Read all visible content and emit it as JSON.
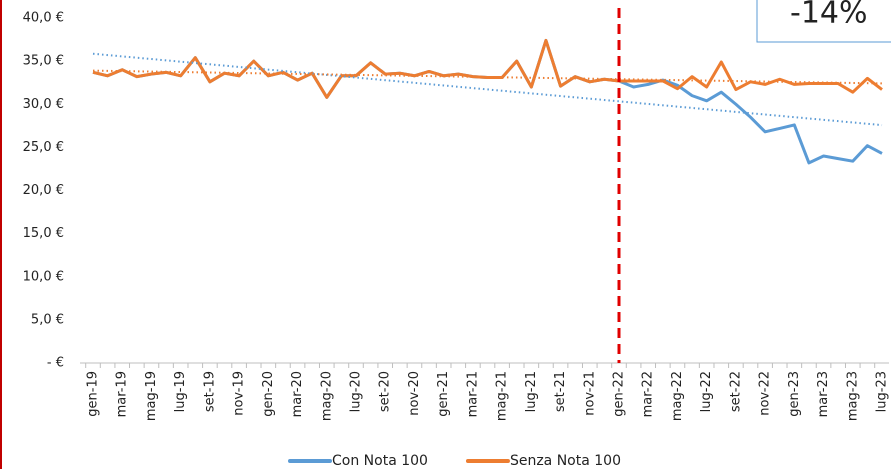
{
  "chart_data": {
    "type": "line",
    "categories": [
      "gen-19",
      null,
      "mar-19",
      null,
      "mag-19",
      null,
      "lug-19",
      null,
      "set-19",
      null,
      "nov-19",
      null,
      "gen-20",
      null,
      "mar-20",
      null,
      "mag-20",
      null,
      "lug-20",
      null,
      "set-20",
      null,
      "nov-20",
      null,
      "gen-21",
      null,
      "mar-21",
      null,
      "mag-21",
      null,
      "lug-21",
      null,
      "set-21",
      null,
      "nov-21",
      null,
      "gen-22",
      null,
      "mar-22",
      null,
      "mag-22",
      null,
      "lug-22",
      null,
      "set-22",
      null,
      "nov-22",
      null,
      "gen-23",
      null,
      "mar-23",
      null,
      "mag-23",
      null,
      "lug-23"
    ],
    "series": [
      {
        "name": "Con Nota 100",
        "color": "#5b9bd5",
        "trendline": true,
        "values": [
          33.7,
          33.3,
          34.0,
          33.2,
          33.5,
          33.7,
          33.3,
          35.4,
          32.6,
          33.6,
          33.3,
          35.0,
          33.3,
          33.7,
          32.8,
          33.6,
          30.8,
          33.3,
          33.3,
          34.8,
          33.5,
          33.6,
          33.3,
          33.8,
          33.3,
          33.5,
          33.2,
          33.1,
          33.1,
          35.0,
          32.0,
          37.4,
          32.1,
          33.2,
          32.6,
          32.9,
          32.7,
          32.0,
          32.3,
          32.8,
          32.2,
          31.0,
          30.4,
          31.4,
          30.0,
          28.5,
          26.8,
          27.2,
          27.6,
          23.2,
          24.0,
          23.7,
          23.4,
          25.2,
          24.3
        ]
      },
      {
        "name": "Senza Nota 100",
        "color": "#ed7d31",
        "trendline": true,
        "values": [
          33.7,
          33.3,
          34.0,
          33.2,
          33.5,
          33.7,
          33.3,
          35.4,
          32.6,
          33.6,
          33.3,
          35.0,
          33.3,
          33.7,
          32.8,
          33.6,
          30.8,
          33.3,
          33.3,
          34.8,
          33.5,
          33.6,
          33.3,
          33.8,
          33.3,
          33.5,
          33.2,
          33.1,
          33.1,
          35.0,
          32.0,
          37.4,
          32.1,
          33.2,
          32.6,
          32.9,
          32.7,
          32.7,
          32.7,
          32.7,
          31.8,
          33.2,
          32.0,
          34.9,
          31.7,
          32.6,
          32.3,
          32.9,
          32.3,
          32.4,
          32.4,
          32.4,
          31.4,
          33.0,
          31.7
        ]
      }
    ],
    "ylim": [
      0,
      40
    ],
    "yticks": [
      {
        "value": 0,
        "label": "-  €"
      },
      {
        "value": 5,
        "label": "5,0 €"
      },
      {
        "value": 10,
        "label": "10,0 €"
      },
      {
        "value": 15,
        "label": "15,0 €"
      },
      {
        "value": 20,
        "label": "20,0 €"
      },
      {
        "value": 25,
        "label": "25,0 €"
      },
      {
        "value": 30,
        "label": "30,0 €"
      },
      {
        "value": 35,
        "label": "35,0 €"
      },
      {
        "value": 40,
        "label": "40,0 €"
      }
    ],
    "reference_line": {
      "x": 36,
      "color": "#e00000"
    },
    "annotation": "-14%",
    "legend": "bottom"
  }
}
